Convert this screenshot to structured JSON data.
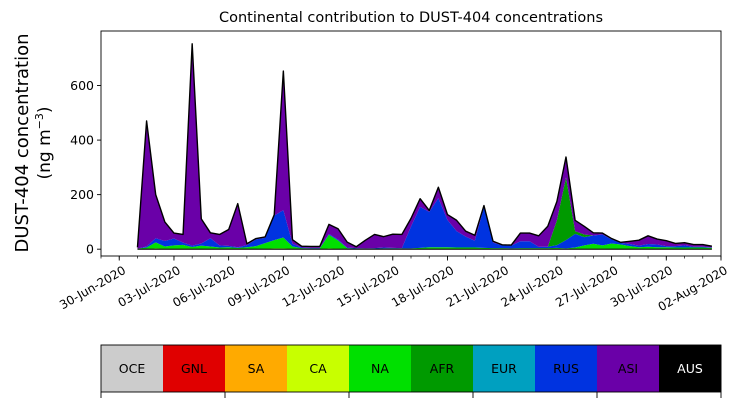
{
  "chart_data": {
    "type": "area",
    "stacked": true,
    "title": "Continental contribution to DUST-404 concentrations",
    "ylabel_line1": "DUST-404 concentration",
    "ylabel_line2_pre": "(ng m",
    "ylabel_line2_sup": "−3",
    "ylabel_line2_post": ")",
    "ylim": [
      -25,
      800
    ],
    "yticks": [
      0,
      200,
      400,
      600
    ],
    "xlim": [
      "2020-06-29",
      "2020-08-02"
    ],
    "xtick_dates": [
      "2020-06-30",
      "2020-07-03",
      "2020-07-06",
      "2020-07-09",
      "2020-07-12",
      "2020-07-15",
      "2020-07-18",
      "2020-07-21",
      "2020-07-24",
      "2020-07-27",
      "2020-07-30",
      "2020-08-02"
    ],
    "xtick_labels": [
      "30-Jun-2020",
      "03-Jul-2020",
      "06-Jul-2020",
      "09-Jul-2020",
      "12-Jul-2020",
      "15-Jul-2020",
      "18-Jul-2020",
      "21-Jul-2020",
      "24-Jul-2020",
      "27-Jul-2020",
      "30-Jul-2020",
      "02-Aug-2020"
    ],
    "x": [
      "2020-07-01 00:00",
      "2020-07-01 12:00",
      "2020-07-02 00:00",
      "2020-07-02 12:00",
      "2020-07-03 00:00",
      "2020-07-03 12:00",
      "2020-07-04 00:00",
      "2020-07-04 12:00",
      "2020-07-05 00:00",
      "2020-07-05 12:00",
      "2020-07-06 00:00",
      "2020-07-06 12:00",
      "2020-07-07 00:00",
      "2020-07-07 12:00",
      "2020-07-08 00:00",
      "2020-07-08 12:00",
      "2020-07-09 00:00",
      "2020-07-09 12:00",
      "2020-07-10 00:00",
      "2020-07-10 12:00",
      "2020-07-11 00:00",
      "2020-07-11 12:00",
      "2020-07-12 00:00",
      "2020-07-12 12:00",
      "2020-07-13 00:00",
      "2020-07-13 12:00",
      "2020-07-14 00:00",
      "2020-07-14 12:00",
      "2020-07-15 00:00",
      "2020-07-15 12:00",
      "2020-07-16 00:00",
      "2020-07-16 12:00",
      "2020-07-17 00:00",
      "2020-07-17 12:00",
      "2020-07-18 00:00",
      "2020-07-18 12:00",
      "2020-07-19 00:00",
      "2020-07-19 12:00",
      "2020-07-20 00:00",
      "2020-07-20 12:00",
      "2020-07-21 00:00",
      "2020-07-21 12:00",
      "2020-07-22 00:00",
      "2020-07-22 12:00",
      "2020-07-23 00:00",
      "2020-07-23 12:00",
      "2020-07-24 00:00",
      "2020-07-24 12:00",
      "2020-07-25 00:00",
      "2020-07-25 12:00",
      "2020-07-26 00:00",
      "2020-07-26 12:00",
      "2020-07-27 00:00",
      "2020-07-27 12:00",
      "2020-07-28 00:00",
      "2020-07-28 12:00",
      "2020-07-29 00:00",
      "2020-07-29 12:00",
      "2020-07-30 00:00",
      "2020-07-30 12:00",
      "2020-07-31 00:00",
      "2020-07-31 12:00",
      "2020-08-01 00:00",
      "2020-08-01 12:00"
    ],
    "series": [
      {
        "name": "OCE",
        "color": "#cccccc",
        "values": [
          0,
          0,
          0,
          0,
          0,
          0,
          0,
          0,
          0,
          0,
          0,
          0,
          0,
          0,
          0,
          0,
          0,
          0,
          0,
          0,
          0,
          0,
          0,
          0,
          0,
          0,
          0,
          0,
          0,
          0,
          0,
          0,
          0,
          0,
          0,
          0,
          0,
          0,
          0,
          0,
          0,
          0,
          0,
          0,
          0,
          0,
          0,
          0,
          0,
          0,
          0,
          0,
          0,
          0,
          0,
          0,
          0,
          0,
          0,
          0,
          0,
          0,
          0,
          0
        ]
      },
      {
        "name": "GNL",
        "color": "#e00000",
        "values": [
          0,
          0,
          0,
          0,
          0,
          0,
          0,
          0,
          0,
          0,
          0,
          0,
          0,
          0,
          0,
          0,
          0,
          0,
          0,
          0,
          0,
          0,
          0,
          0,
          0,
          0,
          0,
          0,
          0,
          0,
          0,
          0,
          0,
          0,
          0,
          0,
          0,
          0,
          0,
          0,
          0,
          0,
          0,
          0,
          0,
          0,
          0,
          0,
          0,
          0,
          0,
          0,
          0,
          0,
          0,
          0,
          0,
          0,
          0,
          0,
          0,
          0,
          0,
          0
        ]
      },
      {
        "name": "SA",
        "color": "#ffaa00",
        "values": [
          0,
          0,
          0,
          0,
          0,
          0,
          0,
          0,
          0,
          0,
          0,
          0,
          0,
          0,
          0,
          0,
          0,
          0,
          0,
          0,
          0,
          0,
          0,
          0,
          0,
          0,
          0,
          0,
          0,
          0,
          0,
          0,
          0,
          0,
          0,
          0,
          0,
          0,
          0,
          0,
          0,
          0,
          0,
          0,
          0,
          0,
          0,
          0,
          0,
          0,
          0,
          0,
          0,
          0,
          0,
          0,
          0,
          0,
          0,
          0,
          0,
          0,
          0,
          0
        ]
      },
      {
        "name": "CA",
        "color": "#c8ff00",
        "values": [
          0,
          1,
          3,
          2,
          2,
          2,
          2,
          1,
          2,
          1,
          1,
          1,
          1,
          1,
          2,
          3,
          3,
          2,
          1,
          1,
          1,
          3,
          2,
          1,
          0,
          0,
          0,
          1,
          1,
          1,
          1,
          1,
          2,
          2,
          2,
          2,
          2,
          2,
          1,
          1,
          1,
          1,
          1,
          1,
          1,
          1,
          2,
          1,
          2,
          2,
          2,
          2,
          1,
          1,
          1,
          1,
          1,
          1,
          1,
          1,
          1,
          1,
          1,
          1
        ]
      },
      {
        "name": "NA",
        "color": "#00e000",
        "values": [
          2,
          5,
          22,
          8,
          12,
          14,
          6,
          12,
          8,
          5,
          6,
          4,
          6,
          10,
          20,
          30,
          40,
          8,
          3,
          2,
          2,
          50,
          30,
          3,
          2,
          2,
          2,
          2,
          2,
          2,
          2,
          4,
          5,
          5,
          5,
          4,
          4,
          4,
          4,
          3,
          3,
          2,
          3,
          3,
          3,
          3,
          3,
          2,
          4,
          12,
          18,
          12,
          20,
          16,
          10,
          6,
          8,
          6,
          6,
          5,
          5,
          5,
          5,
          4
        ]
      },
      {
        "name": "AFR",
        "color": "#009a00",
        "values": [
          0,
          0,
          0,
          0,
          0,
          0,
          0,
          0,
          0,
          0,
          0,
          0,
          0,
          0,
          0,
          0,
          0,
          0,
          0,
          0,
          0,
          0,
          0,
          0,
          0,
          0,
          0,
          0,
          0,
          0,
          0,
          0,
          0,
          0,
          0,
          0,
          0,
          0,
          0,
          0,
          0,
          0,
          0,
          0,
          0,
          0,
          0,
          0,
          0,
          0,
          0,
          0,
          0,
          0,
          0,
          0,
          0,
          0,
          0,
          0,
          0,
          0,
          0,
          0
        ]
      },
      {
        "name": "EUR",
        "color": "#00a0c0",
        "values": [
          0,
          0,
          0,
          0,
          0,
          0,
          0,
          0,
          0,
          0,
          0,
          0,
          0,
          0,
          0,
          0,
          0,
          0,
          0,
          0,
          0,
          0,
          0,
          0,
          0,
          0,
          0,
          0,
          0,
          0,
          0,
          0,
          0,
          0,
          0,
          0,
          0,
          0,
          0,
          0,
          0,
          0,
          0,
          0,
          0,
          0,
          0,
          0,
          0,
          0,
          0,
          0,
          0,
          0,
          0,
          0,
          0,
          0,
          0,
          0,
          0,
          0,
          0,
          0
        ]
      },
      {
        "name": "RUS",
        "color": "#0033e0",
        "values": [
          0,
          4,
          15,
          20,
          25,
          8,
          5,
          8,
          30,
          8,
          5,
          2,
          8,
          25,
          20,
          90,
          100,
          10,
          2,
          2,
          2,
          3,
          3,
          2,
          2,
          1,
          2,
          3,
          2,
          1,
          80,
          150,
          130,
          180,
          100,
          60,
          40,
          25,
          150,
          20,
          10,
          10,
          25,
          25,
          5,
          5,
          10,
          30,
          50,
          30,
          30,
          40,
          15,
          6,
          8,
          6,
          10,
          10,
          4,
          5,
          8,
          3,
          3,
          1
        ]
      },
      {
        "name": "AFR",
        "color": "#009a00",
        "values": [
          0,
          0,
          0,
          0,
          0,
          0,
          0,
          0,
          0,
          0,
          0,
          0,
          0,
          0,
          0,
          0,
          0,
          0,
          0,
          0,
          0,
          0,
          0,
          0,
          0,
          0,
          0,
          0,
          0,
          0,
          0,
          0,
          0,
          0,
          0,
          0,
          0,
          0,
          0,
          0,
          0,
          0,
          0,
          0,
          0,
          0,
          90,
          230,
          10,
          10,
          0,
          0,
          0,
          0,
          0,
          0,
          0,
          0,
          0,
          0,
          0,
          0,
          0,
          0
        ]
      },
      {
        "name": "ASI",
        "color": "#6a00a8",
        "values": [
          5,
          460,
          160,
          70,
          20,
          30,
          740,
          90,
          20,
          40,
          60,
          160,
          5,
          3,
          3,
          3,
          510,
          15,
          5,
          5,
          5,
          35,
          40,
          20,
          5,
          30,
          50,
          40,
          50,
          50,
          30,
          30,
          5,
          40,
          20,
          40,
          20,
          20,
          5,
          5,
          2,
          2,
          30,
          30,
          40,
          75,
          70,
          75,
          40,
          30,
          10,
          5,
          3,
          2,
          10,
          20,
          30,
          20,
          20,
          10,
          10,
          8,
          8,
          5
        ]
      },
      {
        "name": "AUS",
        "color": "#000000",
        "values": [
          0,
          0,
          0,
          0,
          0,
          0,
          0,
          0,
          0,
          0,
          0,
          0,
          0,
          0,
          0,
          0,
          0,
          0,
          0,
          0,
          0,
          0,
          0,
          0,
          0,
          0,
          0,
          0,
          0,
          0,
          0,
          0,
          0,
          0,
          0,
          0,
          0,
          0,
          0,
          0,
          0,
          0,
          0,
          0,
          0,
          0,
          0,
          0,
          0,
          0,
          0,
          0,
          0,
          0,
          0,
          0,
          0,
          0,
          0,
          0,
          0,
          0,
          0,
          0
        ]
      }
    ],
    "legend": {
      "placement": "bottom colorbar",
      "entries": [
        {
          "label": "OCE",
          "color": "#cccccc",
          "text_color": "#000000"
        },
        {
          "label": "GNL",
          "color": "#e00000",
          "text_color": "#000000"
        },
        {
          "label": "SA",
          "color": "#ffaa00",
          "text_color": "#000000"
        },
        {
          "label": "CA",
          "color": "#c8ff00",
          "text_color": "#000000"
        },
        {
          "label": "NA",
          "color": "#00e000",
          "text_color": "#000000"
        },
        {
          "label": "AFR",
          "color": "#009a00",
          "text_color": "#000000"
        },
        {
          "label": "EUR",
          "color": "#00a0c0",
          "text_color": "#000000"
        },
        {
          "label": "RUS",
          "color": "#0033e0",
          "text_color": "#000000"
        },
        {
          "label": "ASI",
          "color": "#6a00a8",
          "text_color": "#000000"
        },
        {
          "label": "AUS",
          "color": "#000000",
          "text_color": "#ffffff"
        }
      ]
    }
  }
}
